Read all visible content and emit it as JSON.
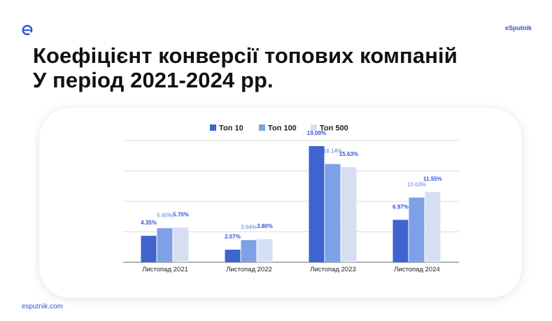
{
  "header": {
    "brand": "eSputnik",
    "logo_icon": "esputnik-logo-icon"
  },
  "title": {
    "line1": "Коефіцієнт конверсії топових компаній",
    "line2": "У період 2021-2024 рр."
  },
  "footer": {
    "url": "esputnik.com"
  },
  "colors": {
    "accent": "#2f55d4",
    "top10": "#3f63cf",
    "top100": "#7ea0e6",
    "top500": "#d6dff2",
    "text": "#111111"
  },
  "chart_data": {
    "type": "bar",
    "categories": [
      "Листопад 2021",
      "Листопад 2022",
      "Листопад 2023",
      "Листопад 2024"
    ],
    "series": [
      {
        "name": "Топ 10",
        "values": [
          4.35,
          2.07,
          19.09,
          6.97
        ],
        "labels": [
          "4.35%",
          "2.07%",
          "19.09%",
          "6.97%"
        ]
      },
      {
        "name": "Топ 100",
        "values": [
          5.6,
          3.64,
          16.14,
          10.63
        ],
        "labels": [
          "5.60%",
          "3.64%",
          "16.14%",
          "10.63%"
        ]
      },
      {
        "name": "Топ 500",
        "values": [
          5.7,
          3.8,
          15.63,
          11.55
        ],
        "labels": [
          "5.70%",
          "3.80%",
          "15.63%",
          "11.55%"
        ]
      }
    ],
    "ylim": [
      0,
      20
    ],
    "grid": true,
    "legend_position": "top-center"
  }
}
